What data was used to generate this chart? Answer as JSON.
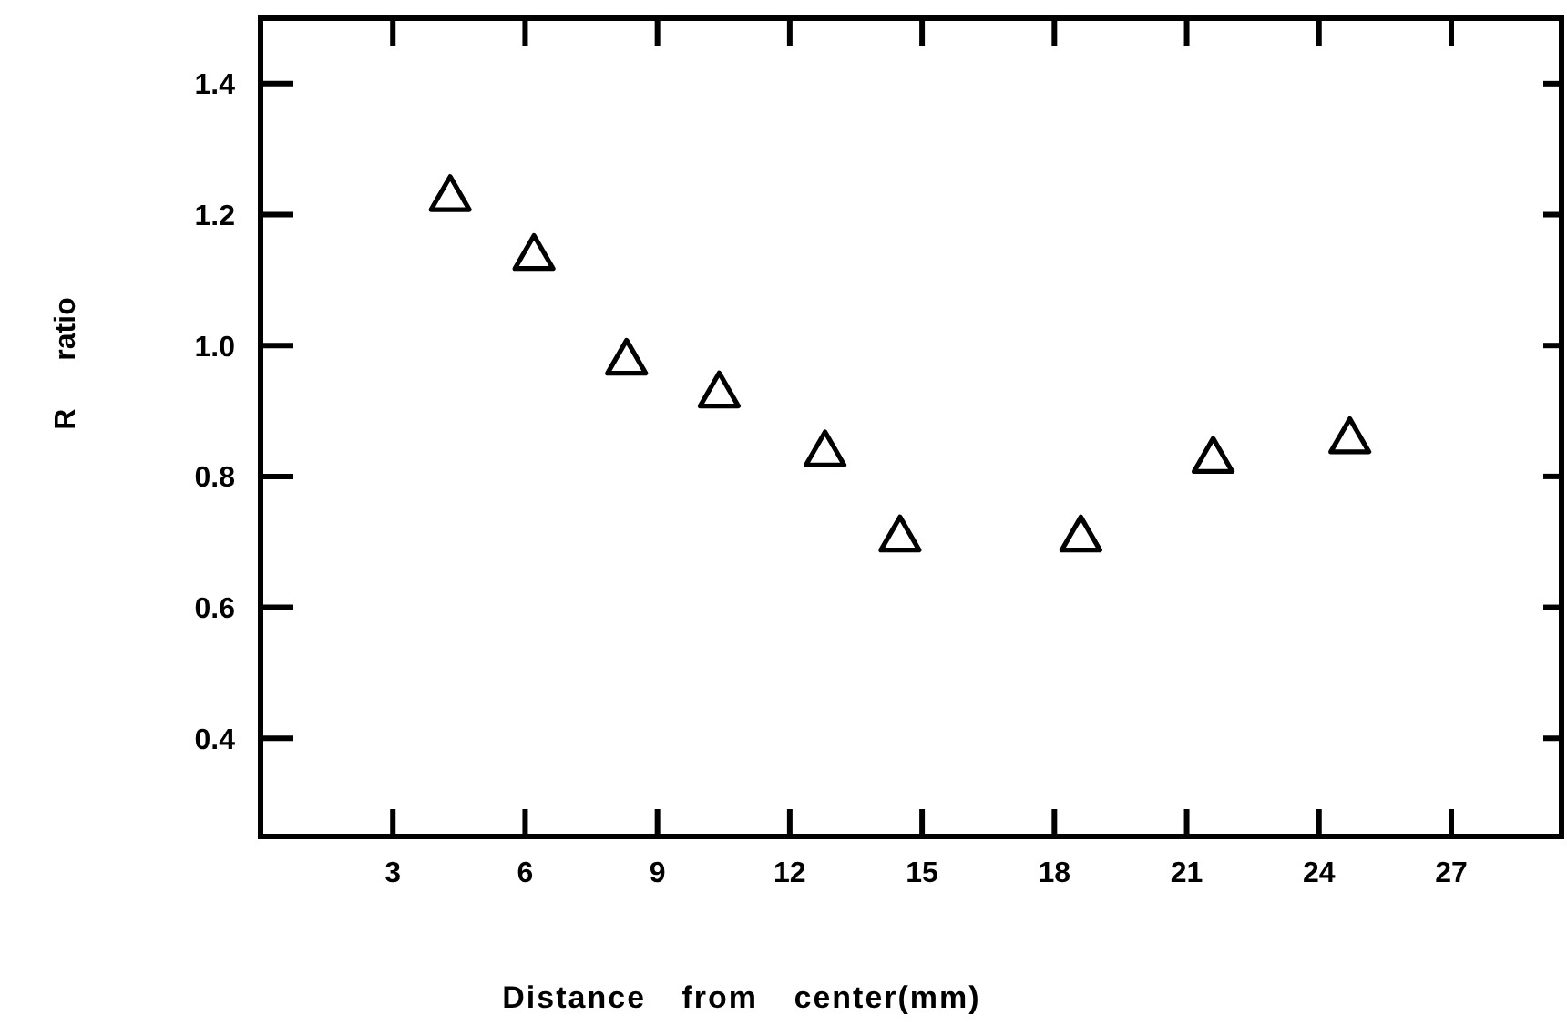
{
  "chart_data": {
    "type": "scatter",
    "xlabel": "Distance from center(mm)",
    "ylabel": "R ratio",
    "x": [
      4.3,
      6.2,
      8.3,
      10.4,
      12.8,
      14.5,
      18.6,
      21.6,
      24.7
    ],
    "values": [
      1.23,
      1.14,
      0.98,
      0.93,
      0.84,
      0.71,
      0.71,
      0.83,
      0.86
    ],
    "color": "#000000",
    "marker": "triangle",
    "xlim": [
      0,
      29.5
    ],
    "xticks": [
      3,
      6,
      9,
      12,
      15,
      18,
      21,
      24,
      27
    ],
    "ylim": [
      0.25,
      1.5
    ],
    "yticks": [
      0.4,
      0.6,
      0.8,
      {
        "value": 1,
        "label": "1.0"
      },
      1.2,
      1.4
    ]
  }
}
